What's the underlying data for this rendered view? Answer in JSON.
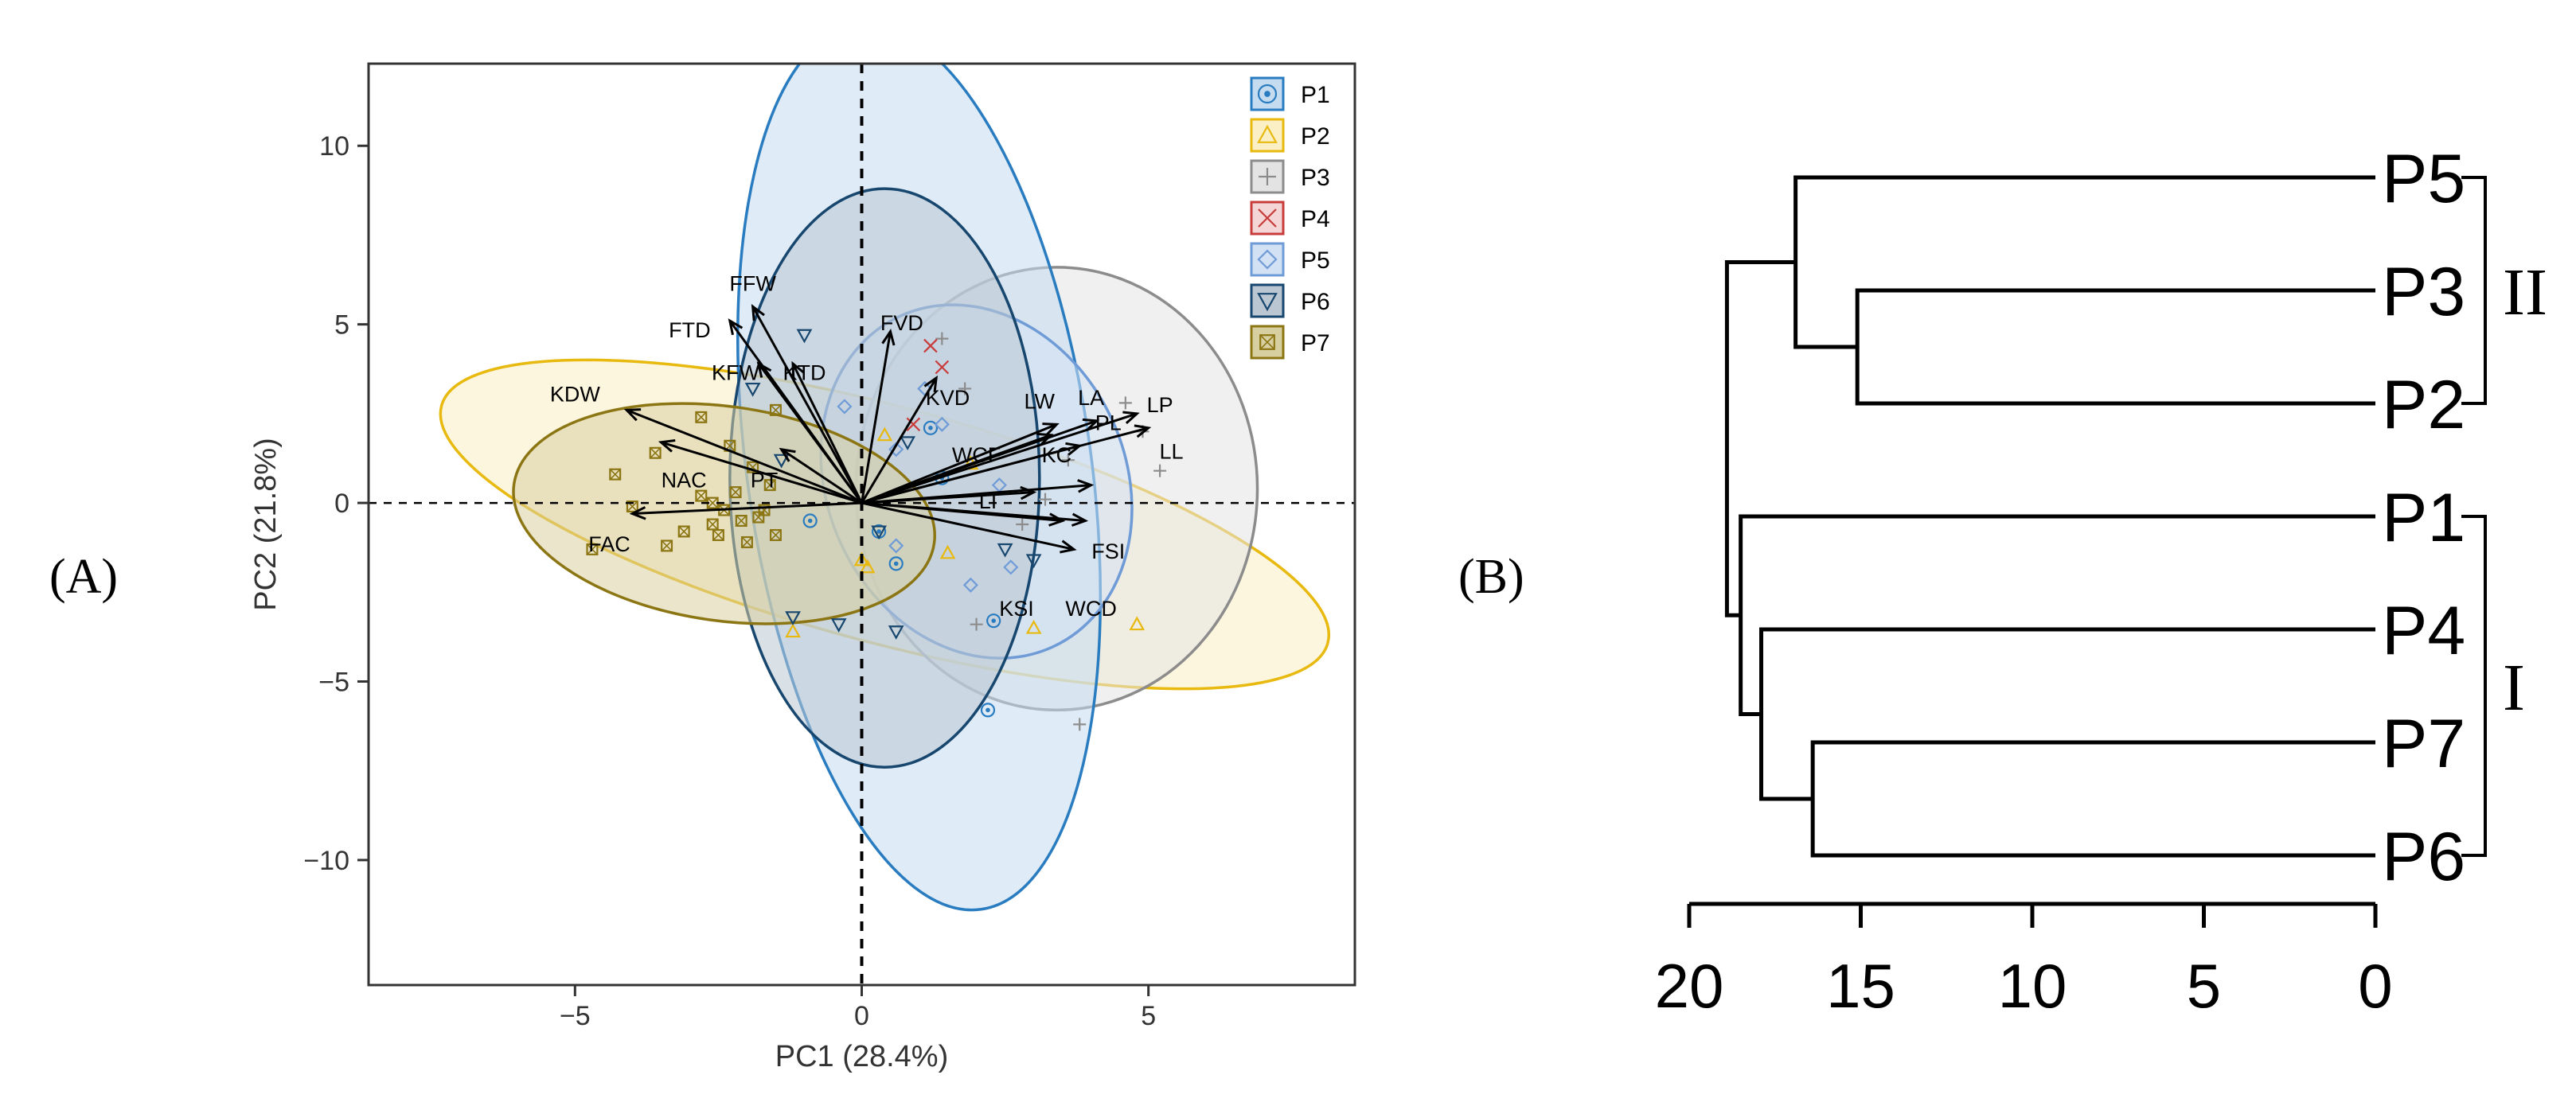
{
  "colors": {
    "P1": "#2a7cc0",
    "P2": "#e8b90f",
    "P3": "#8c8c8c",
    "P4": "#c83c3c",
    "P5": "#6f9bd6",
    "P6": "#17466e",
    "P7": "#8c7614",
    "P1_fill": "#c5dcf0",
    "P2_fill": "#fbefc5",
    "P3_fill": "#e3e3e3",
    "P4_fill": "#f5d6d6",
    "P5_fill": "#d3e1f4",
    "P6_fill": "#bac6d2",
    "P7_fill": "#d8cfa0"
  },
  "panels": {
    "A": {
      "label": "(A)"
    },
    "B": {
      "label": "(B)"
    }
  },
  "chart_data": [
    {
      "id": "pca",
      "type": "scatter",
      "title": "",
      "xlabel": "PC1 (28.4%)",
      "ylabel": "PC2 (21.8%)",
      "xlim": [
        -8.6,
        8.6
      ],
      "ylim": [
        -13.5,
        12.3
      ],
      "xticks": [
        -5,
        0,
        5
      ],
      "yticks": [
        10,
        5,
        0,
        -5,
        -10
      ],
      "grid": false,
      "legend_position": "top-right",
      "legend": [
        {
          "name": "P1",
          "symbol": "circle-dot"
        },
        {
          "name": "P2",
          "symbol": "triangle"
        },
        {
          "name": "P3",
          "symbol": "plus"
        },
        {
          "name": "P4",
          "symbol": "cross"
        },
        {
          "name": "P5",
          "symbol": "diamond"
        },
        {
          "name": "P6",
          "symbol": "triangle-down"
        },
        {
          "name": "P7",
          "symbol": "square-x"
        }
      ],
      "ellipses": [
        {
          "group": "P2",
          "cx": 0.4,
          "cy": -0.6,
          "rx": 8.0,
          "ry": 3.3,
          "angle": -15
        },
        {
          "group": "P3",
          "cx": 3.4,
          "cy": 0.4,
          "rx": 3.5,
          "ry": 6.2,
          "angle": 0
        },
        {
          "group": "P1",
          "cx": 1.0,
          "cy": 1.0,
          "rx": 3.0,
          "ry": 12.5,
          "angle": 8
        },
        {
          "group": "P5",
          "cx": 2.0,
          "cy": 0.6,
          "rx": 2.6,
          "ry": 5.1,
          "angle": 25
        },
        {
          "group": "P6",
          "cx": 0.4,
          "cy": 0.7,
          "rx": 2.7,
          "ry": 8.1,
          "angle": 0
        },
        {
          "group": "P7",
          "cx": -2.4,
          "cy": -0.3,
          "rx": 3.7,
          "ry": 3.0,
          "angle": -8
        }
      ],
      "loadings": [
        {
          "name": "FFW",
          "x": -1.9,
          "y": 5.5,
          "lx": -1.9,
          "ly": 6.1
        },
        {
          "name": "FTD",
          "x": -2.3,
          "y": 5.1,
          "lx": -3.0,
          "ly": 4.8
        },
        {
          "name": "KFW",
          "x": -1.8,
          "y": 3.9,
          "lx": -2.2,
          "ly": 3.6
        },
        {
          "name": "KTD",
          "x": -1.2,
          "y": 3.9,
          "lx": -1.0,
          "ly": 3.6
        },
        {
          "name": "FVD",
          "x": 0.5,
          "y": 4.8,
          "lx": 0.7,
          "ly": 5.0
        },
        {
          "name": "KVD",
          "x": 1.3,
          "y": 3.5,
          "lx": 1.5,
          "ly": 2.9
        },
        {
          "name": "LW",
          "x": 3.4,
          "y": 2.2,
          "lx": 3.1,
          "ly": 2.8
        },
        {
          "name": "LA",
          "x": 4.1,
          "y": 2.3,
          "lx": 4.0,
          "ly": 2.9
        },
        {
          "name": "LP",
          "x": 4.8,
          "y": 2.5,
          "lx": 5.2,
          "ly": 2.7
        },
        {
          "name": "LL",
          "x": 5.0,
          "y": 2.1,
          "lx": 5.4,
          "ly": 1.4
        },
        {
          "name": "WCF",
          "x": 3.3,
          "y": 1.9,
          "lx": 2.0,
          "ly": 1.3
        },
        {
          "name": "KC",
          "x": 3.8,
          "y": 1.6,
          "lx": 3.4,
          "ly": 1.3
        },
        {
          "name": "PL",
          "x": 4.0,
          "y": 0.5,
          "lx": 4.3,
          "ly": 2.2
        },
        {
          "name": "LI",
          "x": 3.0,
          "y": 0.3,
          "lx": 2.2,
          "ly": 0.0
        },
        {
          "name": "FSI",
          "x": 3.9,
          "y": -0.5,
          "lx": 4.3,
          "ly": -1.4
        },
        {
          "name": "KSI",
          "x": 3.5,
          "y": -0.5,
          "lx": 2.7,
          "ly": -3.0
        },
        {
          "name": "WCD",
          "x": 3.7,
          "y": -1.3,
          "lx": 4.0,
          "ly": -3.0
        },
        {
          "name": "KDW",
          "x": -4.1,
          "y": 2.6,
          "lx": -5.0,
          "ly": 3.0
        },
        {
          "name": "NAC",
          "x": -3.5,
          "y": 1.7,
          "lx": -3.1,
          "ly": 0.6
        },
        {
          "name": "PT",
          "x": -1.4,
          "y": 1.5,
          "lx": -1.7,
          "ly": 0.6
        },
        {
          "name": "FAC",
          "x": -4.0,
          "y": -0.3,
          "lx": -4.4,
          "ly": -1.2
        }
      ],
      "points": {
        "P1": [
          [
            -0.9,
            -0.5
          ],
          [
            0.6,
            -1.7
          ],
          [
            1.4,
            0.7
          ],
          [
            2.3,
            -3.3
          ],
          [
            2.2,
            -5.8
          ],
          [
            0.3,
            -0.8
          ],
          [
            1.2,
            2.1
          ]
        ],
        "P2": [
          [
            1.5,
            -1.4
          ],
          [
            4.8,
            -3.4
          ],
          [
            3.0,
            -3.5
          ],
          [
            0.1,
            -1.8
          ],
          [
            -1.2,
            -3.6
          ],
          [
            0.4,
            1.9
          ],
          [
            1.9,
            1.1
          ],
          [
            0.0,
            -1.6
          ]
        ],
        "P3": [
          [
            3.8,
            -6.2
          ],
          [
            4.6,
            2.8
          ],
          [
            4.9,
            2.0
          ],
          [
            5.2,
            0.9
          ],
          [
            1.4,
            4.6
          ],
          [
            1.8,
            3.2
          ],
          [
            2.0,
            -3.4
          ],
          [
            3.6,
            1.2
          ],
          [
            3.2,
            0.1
          ],
          [
            2.8,
            -0.6
          ]
        ],
        "P4": [
          [
            1.2,
            4.4
          ],
          [
            1.4,
            3.8
          ],
          [
            0.9,
            2.2
          ]
        ],
        "P5": [
          [
            1.9,
            -2.3
          ],
          [
            2.6,
            -1.8
          ],
          [
            0.6,
            1.5
          ],
          [
            1.4,
            2.2
          ],
          [
            2.4,
            0.5
          ],
          [
            -0.3,
            2.7
          ],
          [
            0.6,
            -1.2
          ],
          [
            1.1,
            3.2
          ]
        ],
        "P6": [
          [
            -1.2,
            -3.2
          ],
          [
            -0.4,
            -3.4
          ],
          [
            0.6,
            -3.6
          ],
          [
            -1.0,
            4.7
          ],
          [
            -1.4,
            1.2
          ],
          [
            2.5,
            -1.3
          ],
          [
            0.3,
            -0.8
          ],
          [
            0.8,
            1.7
          ],
          [
            3.0,
            -1.6
          ],
          [
            -1.9,
            3.2
          ]
        ],
        "P7": [
          [
            -4.7,
            -1.3
          ],
          [
            -4.0,
            -0.1
          ],
          [
            -3.4,
            -1.2
          ],
          [
            -2.8,
            0.2
          ],
          [
            -2.6,
            -0.6
          ],
          [
            -2.5,
            -0.9
          ],
          [
            -2.2,
            0.3
          ],
          [
            -2.0,
            -1.1
          ],
          [
            -1.8,
            -0.4
          ],
          [
            -1.6,
            0.5
          ],
          [
            -3.6,
            1.4
          ],
          [
            -2.4,
            -0.2
          ],
          [
            -2.1,
            -0.5
          ],
          [
            -1.5,
            -0.9
          ],
          [
            -1.9,
            1.0
          ],
          [
            -2.8,
            2.4
          ],
          [
            -1.5,
            2.6
          ],
          [
            -3.1,
            -0.8
          ],
          [
            -4.3,
            0.8
          ],
          [
            -2.3,
            1.6
          ],
          [
            -1.7,
            -0.2
          ],
          [
            -2.6,
            0.0
          ]
        ]
      }
    },
    {
      "id": "dendrogram",
      "type": "dendrogram",
      "title": "",
      "xlabel": "",
      "xticks": [
        20,
        15,
        10,
        5,
        0
      ],
      "xlim": [
        20,
        0
      ],
      "leaves": [
        "P5",
        "P3",
        "P2",
        "P1",
        "P4",
        "P7",
        "P6"
      ],
      "merges": [
        {
          "a": "P3",
          "b": "P2",
          "height": 15.1
        },
        {
          "a": "P5",
          "b": "P3+P2",
          "height": 16.9
        },
        {
          "a": "P7",
          "b": "P6",
          "height": 16.4
        },
        {
          "a": "P4",
          "b": "P7+P6",
          "height": 17.9
        },
        {
          "a": "P1",
          "b": "P4+P7+P6",
          "height": 18.5
        },
        {
          "a": "P5+P3+P2",
          "b": "P1+P4+P7+P6",
          "height": 18.9
        }
      ],
      "clusters": [
        {
          "label": "II",
          "members": [
            "P5",
            "P3",
            "P2"
          ]
        },
        {
          "label": "I",
          "members": [
            "P1",
            "P4",
            "P7",
            "P6"
          ]
        }
      ]
    }
  ]
}
